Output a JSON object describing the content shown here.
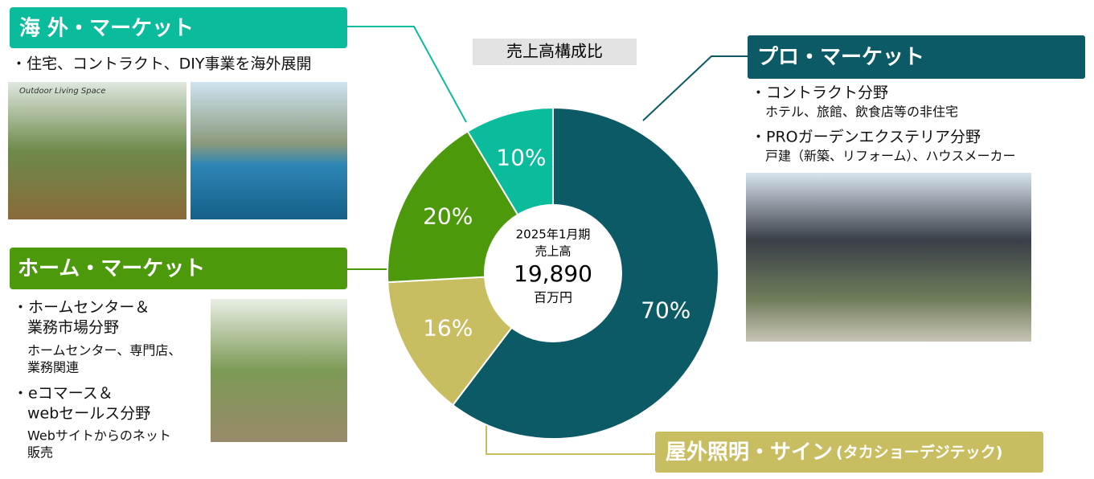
{
  "chart_data": {
    "type": "donut",
    "title": "売上高構成比",
    "values": [
      70,
      16,
      20,
      10
    ],
    "value_labels": [
      "70%",
      "16%",
      "20%",
      "10%"
    ],
    "colors": [
      "#0b5a66",
      "#c9bd62",
      "#4c9a0c",
      "#0bbc9c"
    ],
    "center": [
      "2025年1月期",
      "売上高",
      "19,890",
      "百万円"
    ]
  },
  "panels": {
    "overseas": {
      "title": "海 外・マーケット",
      "bullets": [
        "・住宅、コントラクト、DIY事業を海外展開"
      ],
      "photo_caption": "Outdoor Living Space"
    },
    "home": {
      "title": "ホーム・マーケット",
      "items": [
        {
          "head": [
            "・ホームセンター＆",
            "業務市場分野"
          ],
          "sub": [
            "ホームセンター、専門店、",
            "業務関連"
          ]
        },
        {
          "head": [
            "・eコマース＆",
            "webセールス分野"
          ],
          "sub": [
            "Webサイトからのネット",
            "販売"
          ]
        }
      ]
    },
    "pro": {
      "title": "プロ・マーケット",
      "items": [
        {
          "head": "・コントラクト分野",
          "sub": "ホテル、旅館、飲食店等の非住宅"
        },
        {
          "head": "・PROガーデンエクステリア分野",
          "sub": "戸建（新築、リフォーム）、ハウスメーカー"
        }
      ]
    },
    "lighting": {
      "title": "屋外照明・サイン",
      "note": "(タカショーデジテック)"
    }
  }
}
